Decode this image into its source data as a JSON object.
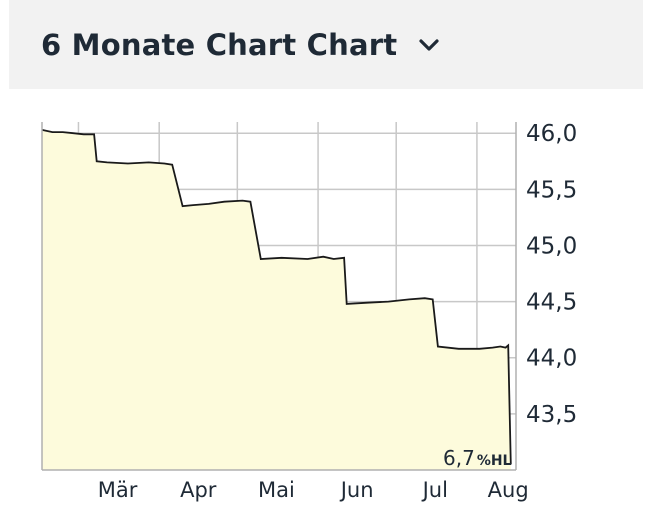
{
  "header": {
    "title": "6 Monate Chart Chart",
    "dropdown_icon": "chevron-down-icon"
  },
  "colors": {
    "header_bg": "#f2f2f2",
    "area_fill": "#fdfbdc",
    "line": "#1a1a1a",
    "grid": "#c8c8c8",
    "text": "#1f2a36"
  },
  "chart_data": {
    "type": "area",
    "title": "",
    "xlabel": "",
    "ylabel": "",
    "x_tick_labels": [
      "Mär",
      "Apr",
      "Mai",
      "Jun",
      "Jul",
      "Aug"
    ],
    "y_tick_labels": [
      "46,0",
      "45,5",
      "45,0",
      "44,5",
      "44,0",
      "43,5"
    ],
    "y_ticks": [
      46.0,
      45.5,
      45.0,
      44.5,
      44.0,
      43.5
    ],
    "ylim": [
      43.0,
      46.1
    ],
    "y_axis_position": "right",
    "grid": true,
    "legend": "none",
    "annotation": {
      "value": "6,7",
      "unit": "%HL"
    },
    "series": [
      {
        "points": [
          [
            "2024-02-16",
            46.03
          ],
          [
            "2024-02-20",
            46.01
          ],
          [
            "2024-02-24",
            46.01
          ],
          [
            "2024-02-28",
            46.0
          ],
          [
            "2024-03-03",
            45.99
          ],
          [
            "2024-03-07",
            45.99
          ],
          [
            "2024-03-08",
            45.75
          ],
          [
            "2024-03-12",
            45.74
          ],
          [
            "2024-03-20",
            45.73
          ],
          [
            "2024-03-28",
            45.74
          ],
          [
            "2024-04-03",
            45.73
          ],
          [
            "2024-04-06",
            45.72
          ],
          [
            "2024-04-10",
            45.35
          ],
          [
            "2024-04-14",
            45.36
          ],
          [
            "2024-04-20",
            45.37
          ],
          [
            "2024-04-26",
            45.39
          ],
          [
            "2024-05-03",
            45.4
          ],
          [
            "2024-05-06",
            45.39
          ],
          [
            "2024-05-10",
            44.88
          ],
          [
            "2024-05-18",
            44.89
          ],
          [
            "2024-05-28",
            44.88
          ],
          [
            "2024-06-03",
            44.9
          ],
          [
            "2024-06-07",
            44.88
          ],
          [
            "2024-06-11",
            44.89
          ],
          [
            "2024-06-12",
            44.48
          ],
          [
            "2024-06-20",
            44.49
          ],
          [
            "2024-06-28",
            44.5
          ],
          [
            "2024-07-06",
            44.52
          ],
          [
            "2024-07-12",
            44.53
          ],
          [
            "2024-07-15",
            44.52
          ],
          [
            "2024-07-17",
            44.1
          ],
          [
            "2024-07-25",
            44.08
          ],
          [
            "2024-08-02",
            44.08
          ],
          [
            "2024-08-07",
            44.09
          ],
          [
            "2024-08-10",
            44.1
          ],
          [
            "2024-08-12",
            44.09
          ],
          [
            "2024-08-13",
            44.11
          ],
          [
            "2024-08-14",
            43.05
          ]
        ]
      }
    ]
  }
}
